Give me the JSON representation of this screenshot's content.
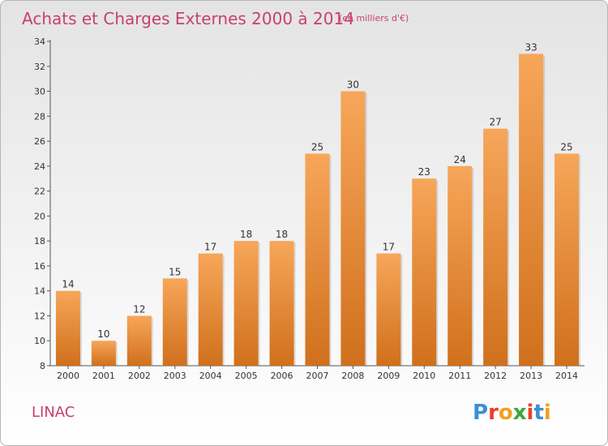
{
  "chart_data": {
    "type": "bar",
    "title": "Achats et Charges Externes 2000 à 2014",
    "subtitle": "(en milliers d'€)",
    "categories": [
      "2000",
      "2001",
      "2002",
      "2003",
      "2004",
      "2005",
      "2006",
      "2007",
      "2008",
      "2009",
      "2010",
      "2011",
      "2012",
      "2013",
      "2014"
    ],
    "values": [
      14,
      10,
      12,
      15,
      17,
      18,
      18,
      25,
      30,
      17,
      23,
      24,
      27,
      33,
      25
    ],
    "ylim": [
      8,
      34
    ],
    "yticks": [
      8,
      10,
      12,
      14,
      16,
      18,
      20,
      22,
      24,
      26,
      28,
      30,
      32,
      34
    ],
    "xlabel": "",
    "ylabel": "",
    "grid": false,
    "bar_color_top": "#f7a65a",
    "bar_color_bottom": "#d0701c"
  },
  "footer": {
    "commune": "LINAC",
    "logo_letters": [
      "P",
      "r",
      "o",
      "x",
      "i",
      "t",
      "i"
    ],
    "logo_colors": [
      "#3a8fd9",
      "#e8402a",
      "#f0a020",
      "#3aa63a",
      "#e8402a",
      "#3a8fd9",
      "#f0a020"
    ]
  },
  "colors": {
    "title": "#c8416a",
    "axis": "#555555"
  }
}
